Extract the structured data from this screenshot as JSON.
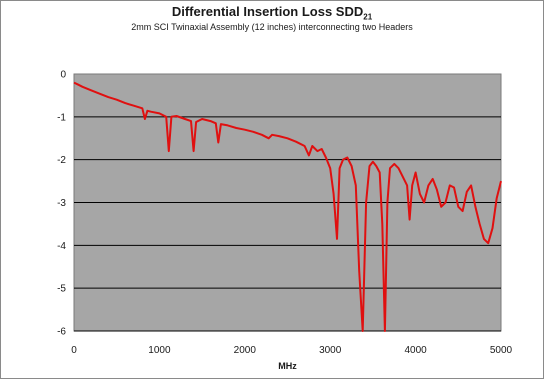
{
  "chart_data": {
    "type": "line",
    "title": "Differential Insertion Loss SDD",
    "title_subscript": "21",
    "subtitle": "2mm SCI Twinaxial Assembly (12 inches) interconnecting two Headers",
    "xlabel": "MHz",
    "ylabel": "",
    "xlim": [
      0,
      5000
    ],
    "ylim": [
      -6,
      0
    ],
    "x_ticks": [
      "0",
      "1000",
      "2000",
      "3000",
      "4000",
      "5000"
    ],
    "y_ticks": [
      "0",
      "-1",
      "-2",
      "-3",
      "-4",
      "-5",
      "-6"
    ],
    "grid": "horizontal",
    "legend": "none",
    "colors": {
      "plot_background": "#a6a6a6",
      "line": "#e01010",
      "gridline": "#000000"
    },
    "series": [
      {
        "x": [
          0,
          50,
          100,
          200,
          300,
          400,
          500,
          600,
          700,
          800,
          830,
          860,
          900,
          1000,
          1080,
          1110,
          1140,
          1200,
          1300,
          1370,
          1400,
          1430,
          1500,
          1600,
          1660,
          1690,
          1720,
          1800,
          1900,
          2000,
          2100,
          2200,
          2280,
          2320,
          2400,
          2500,
          2600,
          2700,
          2750,
          2790,
          2850,
          2900,
          2950,
          3000,
          3040,
          3080,
          3110,
          3150,
          3200,
          3250,
          3300,
          3340,
          3380,
          3420,
          3460,
          3500,
          3540,
          3580,
          3610,
          3640,
          3670,
          3700,
          3750,
          3800,
          3850,
          3900,
          3930,
          3960,
          4000,
          4050,
          4100,
          4150,
          4200,
          4250,
          4300,
          4350,
          4400,
          4450,
          4500,
          4550,
          4600,
          4650,
          4700,
          4750,
          4800,
          4850,
          4900,
          4950,
          5000
        ],
        "values": [
          -0.2,
          -0.25,
          -0.3,
          -0.38,
          -0.46,
          -0.54,
          -0.6,
          -0.68,
          -0.74,
          -0.8,
          -1.05,
          -0.86,
          -0.88,
          -0.92,
          -1.0,
          -1.8,
          -1.0,
          -0.98,
          -1.05,
          -1.1,
          -1.8,
          -1.12,
          -1.05,
          -1.1,
          -1.15,
          -1.6,
          -1.17,
          -1.2,
          -1.26,
          -1.3,
          -1.35,
          -1.42,
          -1.5,
          -1.42,
          -1.45,
          -1.5,
          -1.58,
          -1.68,
          -1.9,
          -1.68,
          -1.8,
          -1.75,
          -1.95,
          -2.2,
          -2.8,
          -3.85,
          -2.2,
          -2.0,
          -1.95,
          -2.15,
          -2.6,
          -4.6,
          -6.0,
          -3.0,
          -2.15,
          -2.05,
          -2.15,
          -2.3,
          -3.5,
          -6.0,
          -3.0,
          -2.2,
          -2.1,
          -2.2,
          -2.4,
          -2.6,
          -3.4,
          -2.6,
          -2.3,
          -2.8,
          -3.0,
          -2.6,
          -2.45,
          -2.7,
          -3.1,
          -3.0,
          -2.6,
          -2.65,
          -3.1,
          -3.2,
          -2.75,
          -2.6,
          -3.1,
          -3.5,
          -3.85,
          -3.95,
          -3.6,
          -2.9,
          -2.5
        ]
      }
    ]
  }
}
